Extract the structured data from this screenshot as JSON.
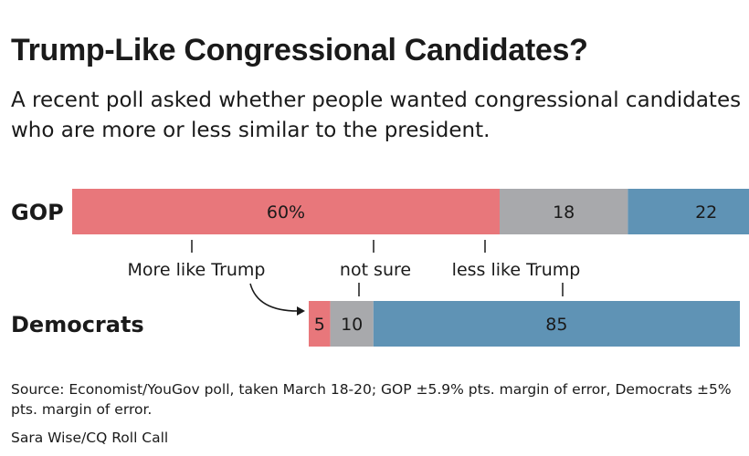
{
  "title": "Trump-Like Congressional Candidates?",
  "subtitle": "A recent poll asked whether people wanted congressional candidates who are more or less similar to the president.",
  "colors": {
    "more": "#e8777b",
    "not_sure": "#a8a9ac",
    "less": "#5f93b5",
    "text": "#1a1a1a"
  },
  "chart_data": {
    "type": "bar",
    "orientation": "horizontal",
    "stacked": true,
    "categories": [
      "GOP",
      "Democrats"
    ],
    "series": [
      {
        "name": "More like Trump",
        "values": [
          60,
          5
        ],
        "color": "#e8777b"
      },
      {
        "name": "not sure",
        "values": [
          18,
          10
        ],
        "color": "#a8a9ac"
      },
      {
        "name": "less like Trump",
        "values": [
          22,
          85
        ],
        "color": "#5f93b5"
      }
    ],
    "data_labels": [
      [
        "60%",
        "18",
        "22"
      ],
      [
        "5",
        "10",
        "85"
      ]
    ],
    "legend": "between-bars",
    "grid": false
  },
  "source": "Source: Economist/YouGov poll, taken March 18-20; GOP ±5.9% pts. margin of error, Democrats ±5% pts. margin of error.",
  "credit": "Sara Wise/CQ Roll Call"
}
